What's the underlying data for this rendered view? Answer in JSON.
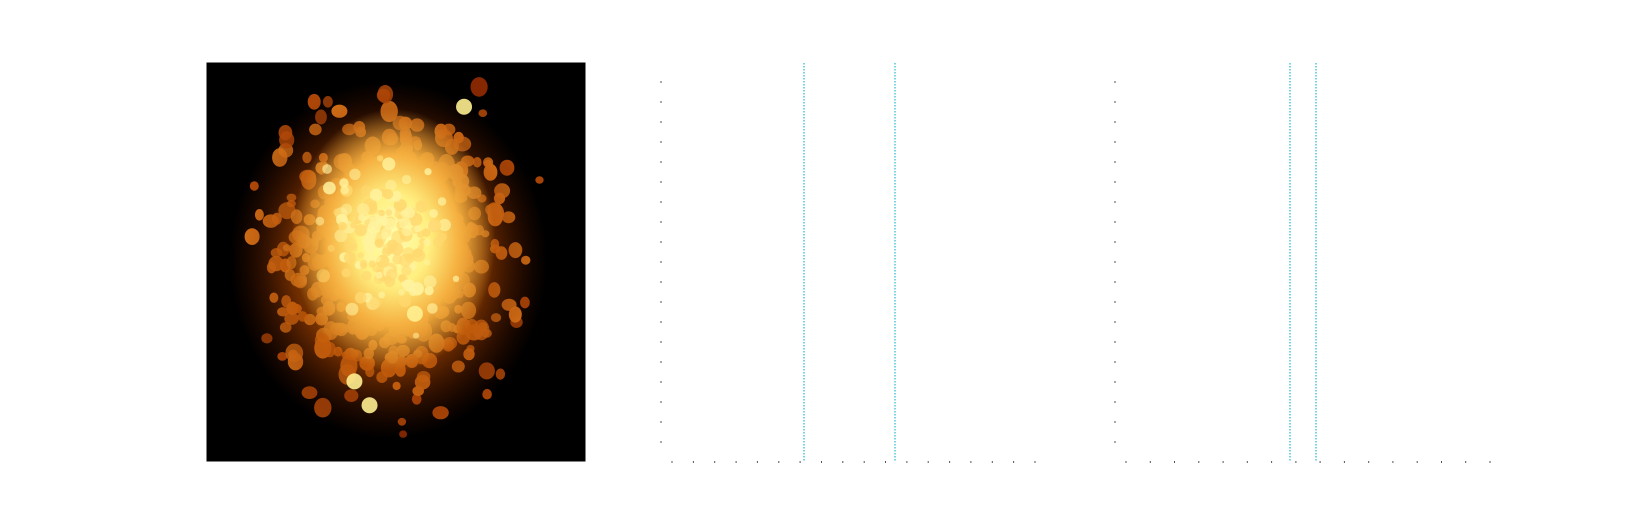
{
  "chart_data": [
    {
      "type": "heatmap",
      "title": "",
      "xlabel": "",
      "ylabel": "",
      "colormap": "afmhot",
      "colors": {
        "low": "#000000",
        "mid": "#cc5200",
        "high": "#ffff99"
      },
      "description_values": {
        "peak_intensity": 1.0,
        "background_intensity": 0.0
      },
      "grid": false
    },
    {
      "type": "line",
      "title": "",
      "xlabel": "",
      "ylabel": "",
      "grid": false,
      "vertical_lines": {
        "color": "#22b8cf",
        "style": "dotted",
        "count": 2
      },
      "x_ticks_count": 18,
      "y_ticks_count": 19
    },
    {
      "type": "line",
      "title": "",
      "xlabel": "",
      "ylabel": "",
      "grid": false,
      "vertical_lines": {
        "color": "#22b8cf",
        "style": "dotted",
        "count": 2
      },
      "x_ticks_count": 16,
      "y_ticks_count": 19
    }
  ]
}
